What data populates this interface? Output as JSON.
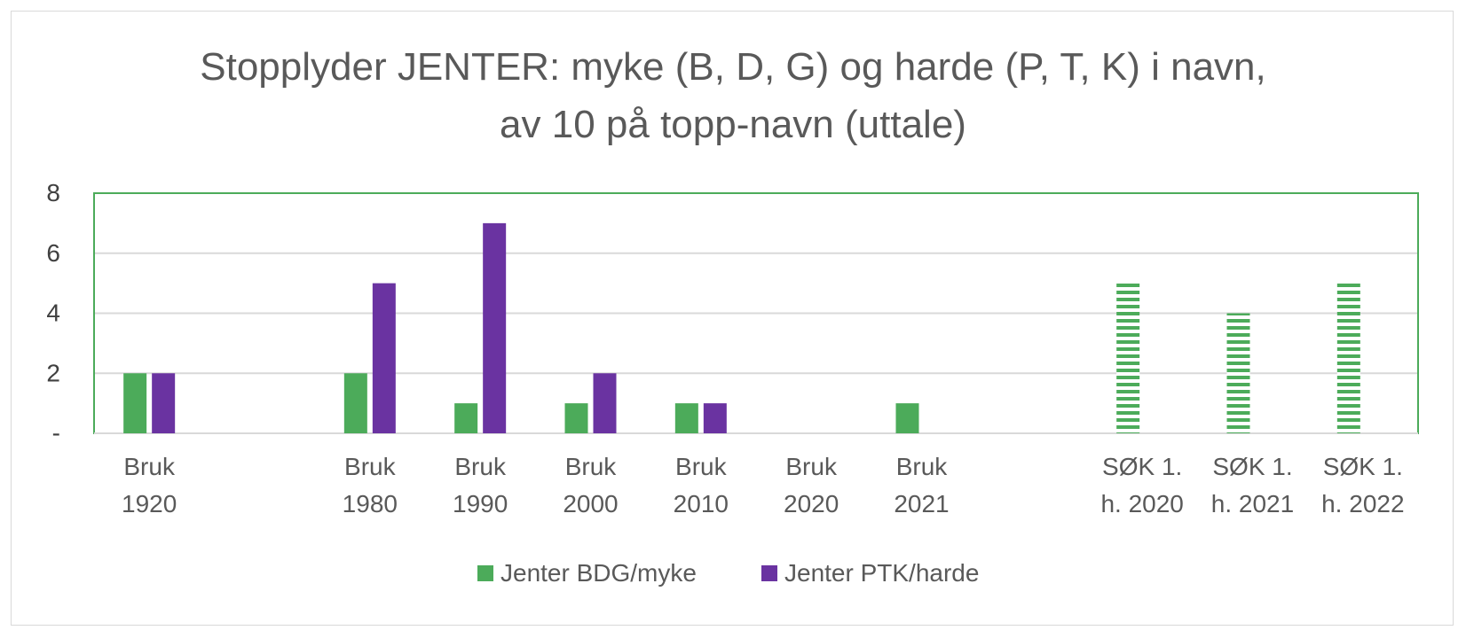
{
  "chart_data": {
    "type": "bar",
    "title_lines": [
      "Stopplyder JENTER: myke (B, D, G) og harde (P, T, K) i navn,",
      "av 10 på topp-navn (uttale)"
    ],
    "categories": [
      [
        "Bruk",
        "1920"
      ],
      [
        "",
        ""
      ],
      [
        "Bruk",
        "1980"
      ],
      [
        "Bruk",
        "1990"
      ],
      [
        "Bruk",
        "2000"
      ],
      [
        "Bruk",
        "2010"
      ],
      [
        "Bruk",
        "2020"
      ],
      [
        "Bruk",
        "2021"
      ],
      [
        "",
        ""
      ],
      [
        "SØK 1.",
        "h. 2020"
      ],
      [
        "SØK 1.",
        "h. 2021"
      ],
      [
        "SØK 1.",
        "h. 2022"
      ]
    ],
    "series": [
      {
        "name": "Jenter BDG/myke",
        "color": "#4cab5a",
        "values": [
          2,
          null,
          2,
          1,
          1,
          1,
          null,
          1,
          null,
          5,
          4,
          5
        ],
        "striped": [
          false,
          false,
          false,
          false,
          false,
          false,
          false,
          false,
          false,
          true,
          true,
          true
        ]
      },
      {
        "name": "Jenter PTK/harde",
        "color": "#6a33a1",
        "values": [
          2,
          null,
          5,
          7,
          2,
          1,
          null,
          null,
          null,
          null,
          null,
          null
        ],
        "striped": [
          false,
          false,
          false,
          false,
          false,
          false,
          false,
          false,
          false,
          false,
          false,
          false
        ]
      }
    ],
    "y_ticks": [
      "-",
      "2",
      "4",
      "6",
      "8"
    ],
    "ylim": [
      0,
      8
    ],
    "plot_border_color": "#4cab5a",
    "grid": true,
    "legend_position": "bottom"
  }
}
